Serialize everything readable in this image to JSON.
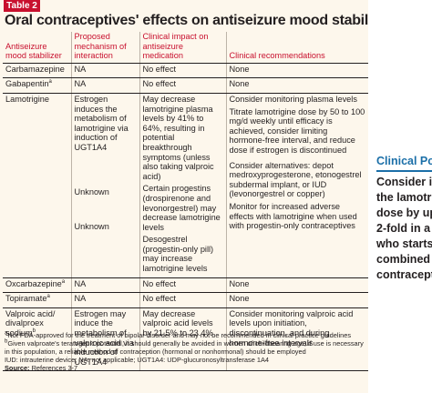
{
  "tag": "Table 2",
  "title": "Oral contraceptives' effects on antiseizure mood stabilizers",
  "headers": [
    "Antiseizure mood stabilizer",
    "Proposed mechanism of interaction",
    "Clinical impact on antiseizure medication",
    "Clinical recommendations"
  ],
  "rows": [
    {
      "drug": "Carbamazepine",
      "sup": "",
      "mech": [
        "NA"
      ],
      "impact": [
        "No effect"
      ],
      "rec": [
        "None"
      ]
    },
    {
      "drug": "Gabapentin",
      "sup": "a",
      "mech": [
        "NA"
      ],
      "impact": [
        "No effect"
      ],
      "rec": [
        "None"
      ]
    },
    {
      "drug": "Lamotrigine",
      "sup": "",
      "mech": [
        "Estrogen induces the metabolism of lamotrigine via induction of UGT1A4",
        "Unknown",
        "Unknown"
      ],
      "impact": [
        "May decrease lamotrigine plasma levels by 41% to 64%, resulting in potential breakthrough symptoms (unless also taking valproic acid)",
        "Certain progestins (drospirenone and levonorgestrel) may decrease lamotrigine levels",
        "Desogestrel (progestin-only pill) may increase lamotrigine levels"
      ],
      "rec": [
        "Consider monitoring plasma levels",
        "Titrate lamotrigine dose by 50 to 100 mg/d weekly until efficacy is achieved, consider limiting hormone-free interval, and reduce dose if estrogen is discontinued",
        "Consider alternatives: depot medroxyprogesterone, etonogestrel subdermal implant, or IUD (levonorgestrel or copper)",
        "Monitor for increased adverse effects with lamotrigine when used with progestin-only contraceptives"
      ]
    },
    {
      "drug": "Oxcarbazepine",
      "sup": "a",
      "mech": [
        "NA"
      ],
      "impact": [
        "No effect"
      ],
      "rec": [
        "None"
      ]
    },
    {
      "drug": "Topiramate",
      "sup": "a",
      "mech": [
        "NA"
      ],
      "impact": [
        "No effect"
      ],
      "rec": [
        "None"
      ]
    },
    {
      "drug": "Valproic acid/ divalproex sodium",
      "sup": "b",
      "mech": [
        "Estrogen may induce the metabolism of valproic acid via induction of UGT1A4"
      ],
      "impact": [
        "May decrease valproic acid levels by 21.5% to 23.4%"
      ],
      "rec": [
        "Consider monitoring valproic acid levels upon initiation, discontinuation, and during hormone-free intervals"
      ]
    }
  ],
  "footnotes": {
    "a": "Not FDA-approved for the treatment of bipolar disorder and may not be recommended in clinical practice guidelines",
    "b": "Given valproate's teratogenic potential, it should generally be avoided in women of childbearing age; if use is necessary in this population, a reliable method of contraception (hormonal or nonhormonal) should be employed",
    "abbr": "IUD: intrauterine device; NA: not applicable; UGT1A4: UDP-glucuronosyltransferase 1A4",
    "source_label": "Source:",
    "source_text": "References 3-7"
  },
  "sidebar": {
    "title": "Clinical Poi",
    "lines": [
      "Consider inc",
      "the lamotrig",
      "dose by up t",
      "2-fold in a p",
      "who starts t",
      "combined h",
      "contraceptiv"
    ]
  },
  "colors": {
    "accent": "#c8102e",
    "sidebar_accent": "#1b6fa8",
    "card_bg": "#fdf7ec"
  }
}
